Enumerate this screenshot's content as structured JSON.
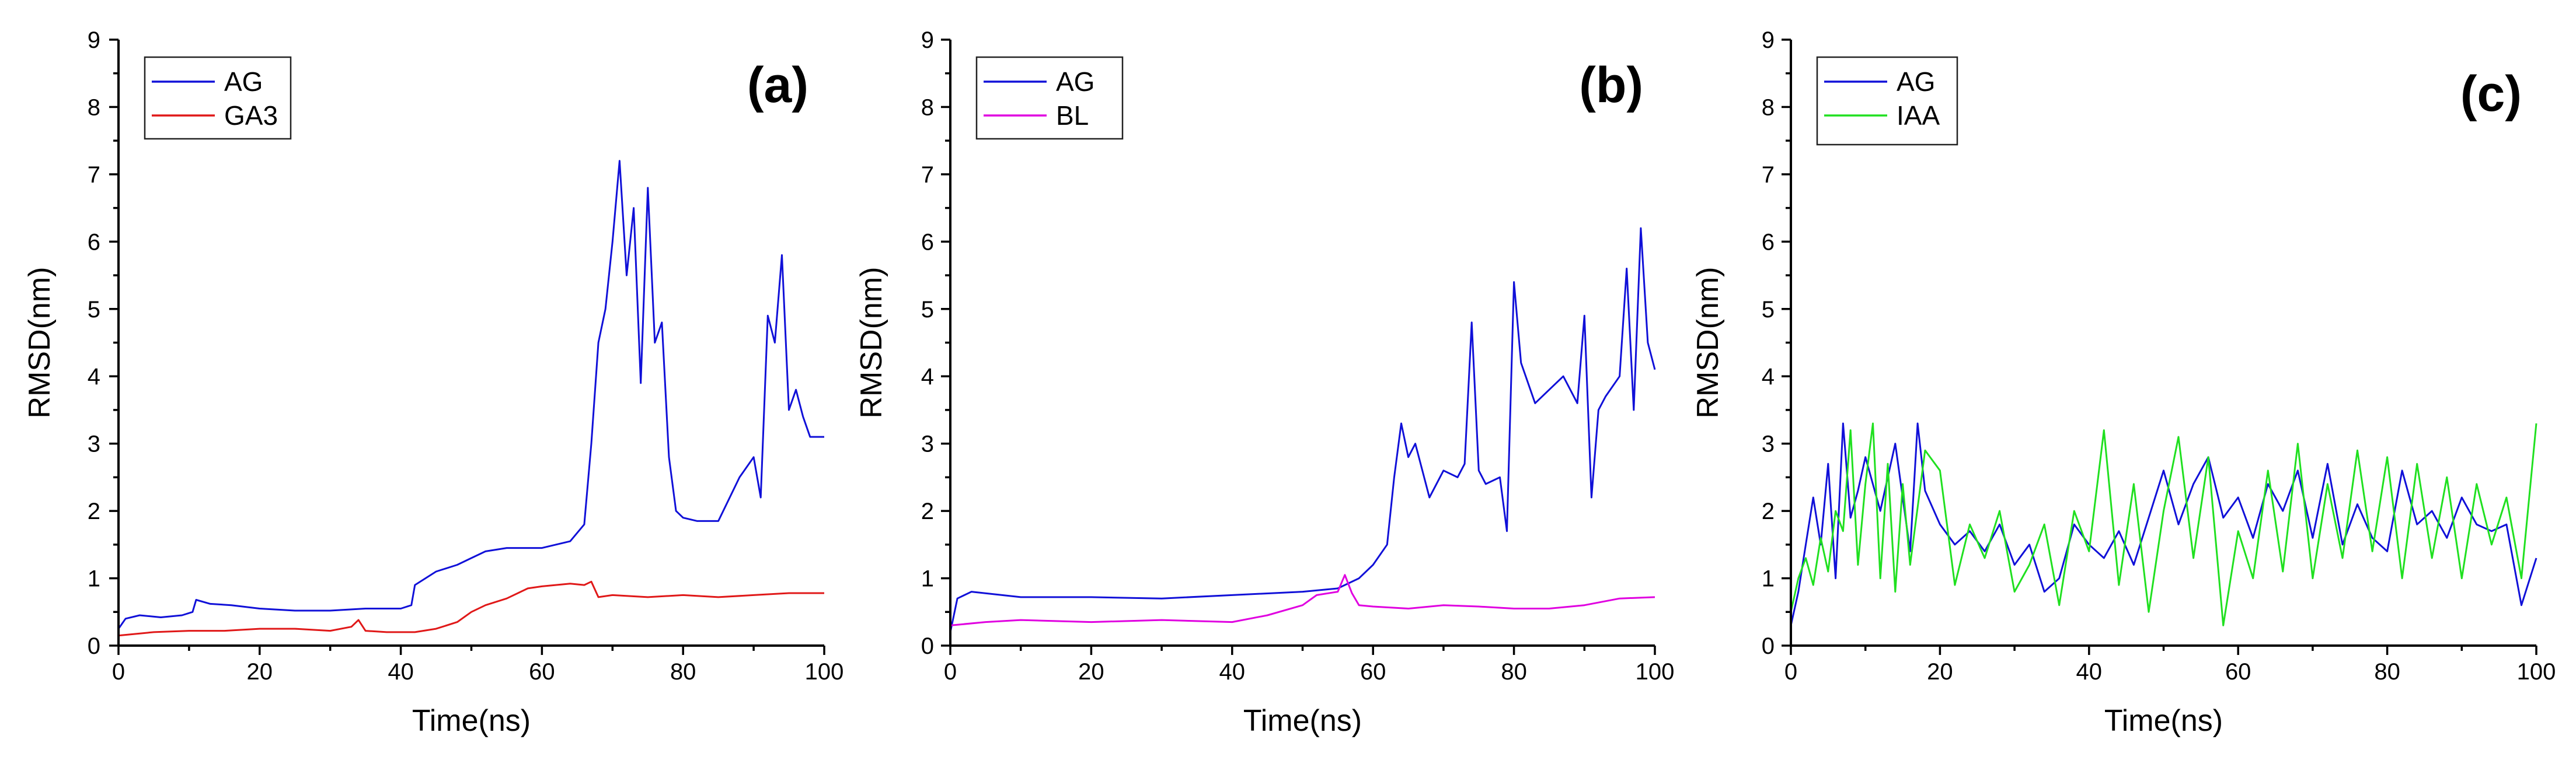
{
  "colors": {
    "AG": "#1010d8",
    "GA3": "#e01818",
    "BL": "#e000e0",
    "IAA": "#20e020"
  },
  "chart_data": [
    {
      "type": "line",
      "panel_label": "(a)",
      "xlabel": "Time(ns)",
      "ylabel": "RMSD(nm)",
      "xlim": [
        0,
        100
      ],
      "ylim": [
        0,
        9
      ],
      "xticks": [
        0,
        20,
        40,
        60,
        80,
        100
      ],
      "yticks": [
        0,
        1,
        2,
        3,
        4,
        5,
        6,
        7,
        8,
        9
      ],
      "legend": "top-left",
      "grid": false,
      "series": [
        {
          "name": "AG",
          "color": "#1010d8",
          "x": [
            0,
            1,
            3,
            6,
            9,
            10.5,
            11,
            13,
            16,
            20,
            25,
            30,
            35,
            40,
            41.5,
            42,
            45,
            48,
            50,
            52,
            55,
            60,
            64,
            66,
            67,
            68,
            69,
            70,
            71,
            72,
            73,
            74,
            75,
            76,
            77,
            78,
            79,
            80,
            82,
            85,
            88,
            90,
            91,
            92,
            93,
            94,
            95,
            96,
            97,
            98,
            100
          ],
          "y": [
            0.25,
            0.4,
            0.45,
            0.42,
            0.45,
            0.5,
            0.68,
            0.62,
            0.6,
            0.55,
            0.52,
            0.52,
            0.55,
            0.55,
            0.6,
            0.9,
            1.1,
            1.2,
            1.3,
            1.4,
            1.45,
            1.45,
            1.55,
            1.8,
            3.0,
            4.5,
            5.0,
            6.0,
            7.2,
            5.5,
            6.5,
            3.9,
            6.8,
            4.5,
            4.8,
            2.8,
            2.0,
            1.9,
            1.85,
            1.85,
            2.5,
            2.8,
            2.2,
            4.9,
            4.5,
            5.8,
            3.5,
            3.8,
            3.4,
            3.1,
            3.1
          ]
        },
        {
          "name": "GA3",
          "color": "#e01818",
          "x": [
            0,
            5,
            10,
            15,
            20,
            25,
            30,
            33,
            34,
            35,
            38,
            42,
            45,
            48,
            50,
            52,
            55,
            58,
            60,
            64,
            66,
            67,
            68,
            70,
            75,
            80,
            85,
            90,
            95,
            100
          ],
          "y": [
            0.15,
            0.2,
            0.22,
            0.22,
            0.25,
            0.25,
            0.22,
            0.28,
            0.38,
            0.22,
            0.2,
            0.2,
            0.25,
            0.35,
            0.5,
            0.6,
            0.7,
            0.85,
            0.88,
            0.92,
            0.9,
            0.95,
            0.72,
            0.75,
            0.72,
            0.75,
            0.72,
            0.75,
            0.78,
            0.78
          ]
        }
      ]
    },
    {
      "type": "line",
      "panel_label": "(b)",
      "xlabel": "Time(ns)",
      "ylabel": "RMSD(nm)",
      "xlim": [
        0,
        100
      ],
      "ylim": [
        0,
        9
      ],
      "xticks": [
        0,
        20,
        40,
        60,
        80,
        100
      ],
      "yticks": [
        0,
        1,
        2,
        3,
        4,
        5,
        6,
        7,
        8,
        9
      ],
      "legend": "top-left",
      "grid": false,
      "series": [
        {
          "name": "AG",
          "color": "#1010d8",
          "x": [
            0,
            1,
            3,
            10,
            20,
            30,
            40,
            50,
            55,
            58,
            60,
            62,
            63,
            64,
            65,
            66,
            68,
            70,
            72,
            73,
            74,
            75,
            76,
            78,
            79,
            80,
            81,
            83,
            85,
            87,
            89,
            90,
            91,
            92,
            93,
            95,
            96,
            97,
            98,
            99,
            100
          ],
          "y": [
            0.2,
            0.7,
            0.8,
            0.72,
            0.72,
            0.7,
            0.75,
            0.8,
            0.85,
            1.0,
            1.2,
            1.5,
            2.5,
            3.3,
            2.8,
            3.0,
            2.2,
            2.6,
            2.5,
            2.7,
            4.8,
            2.6,
            2.4,
            2.5,
            1.7,
            5.4,
            4.2,
            3.6,
            3.8,
            4.0,
            3.6,
            4.9,
            2.2,
            3.5,
            3.7,
            4.0,
            5.6,
            3.5,
            6.2,
            4.5,
            4.1
          ]
        },
        {
          "name": "BL",
          "color": "#e000e0",
          "x": [
            0,
            5,
            10,
            20,
            30,
            40,
            45,
            50,
            52,
            55,
            56,
            57,
            58,
            60,
            65,
            70,
            75,
            80,
            85,
            90,
            95,
            100
          ],
          "y": [
            0.3,
            0.35,
            0.38,
            0.35,
            0.38,
            0.35,
            0.45,
            0.6,
            0.75,
            0.8,
            1.05,
            0.78,
            0.6,
            0.58,
            0.55,
            0.6,
            0.58,
            0.55,
            0.55,
            0.6,
            0.7,
            0.72
          ]
        }
      ]
    },
    {
      "type": "line",
      "panel_label": "(c)",
      "xlabel": "Time(ns)",
      "ylabel": "RMSD(nm)",
      "xlim": [
        0,
        100
      ],
      "ylim": [
        0,
        9
      ],
      "xticks": [
        0,
        20,
        40,
        60,
        80,
        100
      ],
      "yticks": [
        0,
        1,
        2,
        3,
        4,
        5,
        6,
        7,
        8,
        9
      ],
      "legend": "top-left",
      "grid": false,
      "series": [
        {
          "name": "AG",
          "color": "#1010d8",
          "x": [
            0,
            1,
            2,
            3,
            4,
            5,
            6,
            7,
            8,
            9,
            10,
            12,
            14,
            16,
            17,
            18,
            20,
            22,
            24,
            26,
            28,
            30,
            32,
            34,
            36,
            38,
            40,
            42,
            44,
            46,
            48,
            50,
            52,
            54,
            56,
            58,
            60,
            62,
            64,
            66,
            68,
            70,
            72,
            74,
            76,
            78,
            80,
            82,
            84,
            86,
            88,
            90,
            92,
            94,
            96,
            98,
            100
          ],
          "y": [
            0.3,
            0.8,
            1.5,
            2.2,
            1.5,
            2.7,
            1.0,
            3.3,
            1.9,
            2.3,
            2.8,
            2.0,
            3.0,
            1.4,
            3.3,
            2.3,
            1.8,
            1.5,
            1.7,
            1.4,
            1.8,
            1.2,
            1.5,
            0.8,
            1.0,
            1.8,
            1.5,
            1.3,
            1.7,
            1.2,
            1.9,
            2.6,
            1.8,
            2.4,
            2.8,
            1.9,
            2.2,
            1.6,
            2.4,
            2.0,
            2.6,
            1.6,
            2.7,
            1.5,
            2.1,
            1.6,
            1.4,
            2.6,
            1.8,
            2.0,
            1.6,
            2.2,
            1.8,
            1.7,
            1.8,
            0.6,
            1.3
          ]
        },
        {
          "name": "IAA",
          "color": "#20e020",
          "x": [
            0,
            1,
            2,
            3,
            4,
            5,
            6,
            7,
            8,
            9,
            10,
            11,
            12,
            13,
            14,
            15,
            16,
            18,
            20,
            22,
            24,
            26,
            28,
            30,
            32,
            34,
            36,
            38,
            40,
            42,
            44,
            46,
            48,
            50,
            52,
            54,
            56,
            58,
            60,
            62,
            64,
            66,
            68,
            70,
            72,
            74,
            76,
            78,
            80,
            82,
            84,
            86,
            88,
            90,
            92,
            94,
            96,
            98,
            100
          ],
          "y": [
            0.5,
            1.0,
            1.3,
            0.9,
            1.6,
            1.1,
            2.0,
            1.7,
            3.2,
            1.2,
            2.4,
            3.3,
            1.0,
            2.7,
            0.8,
            2.4,
            1.2,
            2.9,
            2.6,
            0.9,
            1.8,
            1.3,
            2.0,
            0.8,
            1.2,
            1.8,
            0.6,
            2.0,
            1.4,
            3.2,
            0.9,
            2.4,
            0.5,
            2.0,
            3.1,
            1.3,
            2.8,
            0.3,
            1.7,
            1.0,
            2.6,
            1.1,
            3.0,
            1.0,
            2.4,
            1.3,
            2.9,
            1.4,
            2.8,
            1.0,
            2.7,
            1.3,
            2.5,
            1.0,
            2.4,
            1.5,
            2.2,
            1.0,
            3.3
          ]
        }
      ]
    }
  ]
}
